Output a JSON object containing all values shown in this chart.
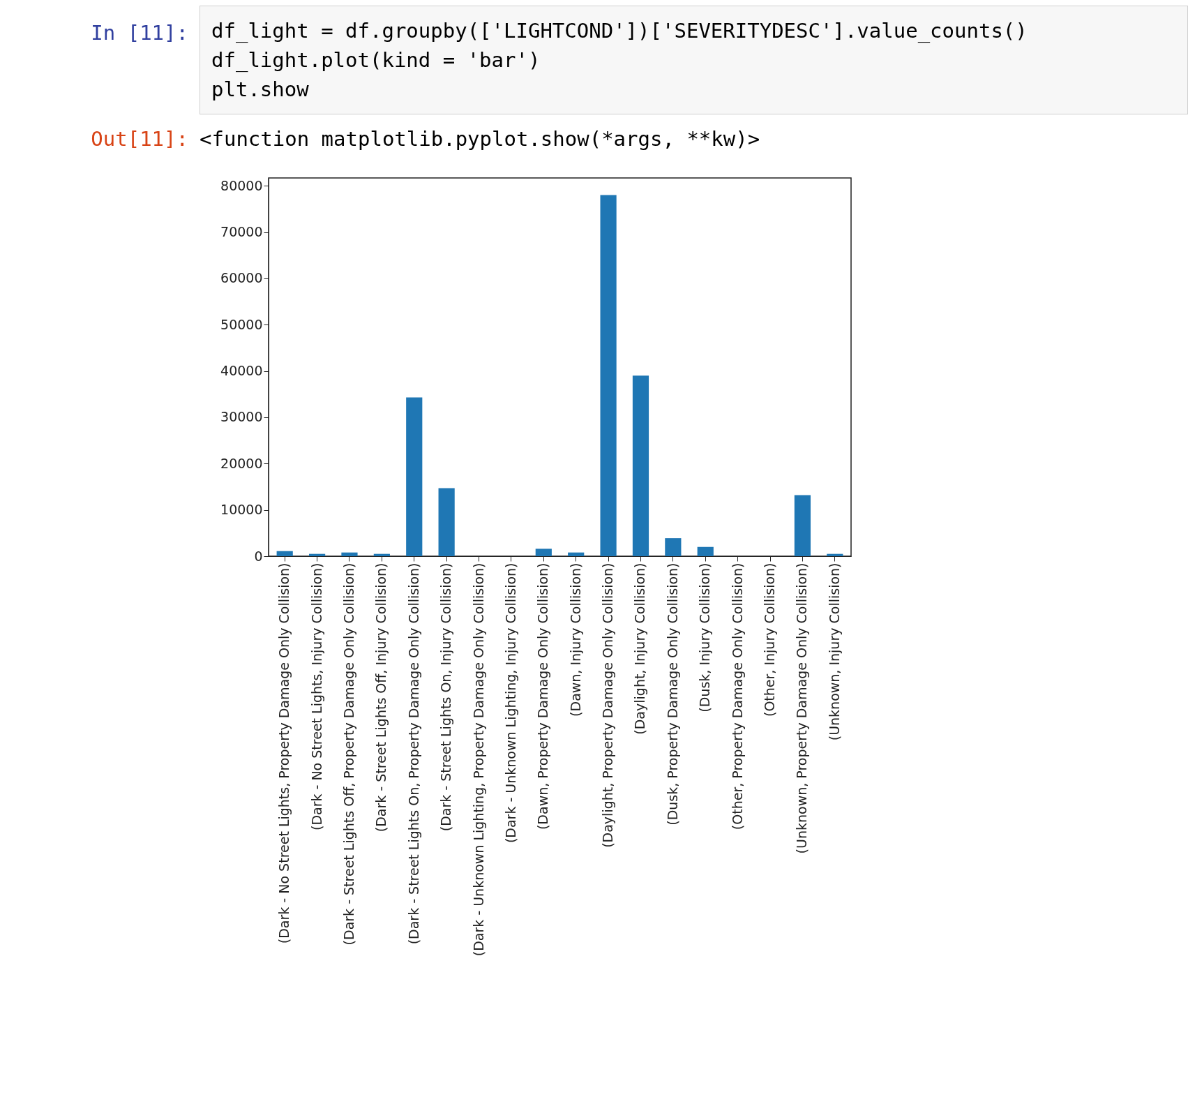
{
  "chart_data": {
    "type": "bar",
    "annotations": [
      "In [11]:",
      "df_light = df.groupby(['LIGHTCOND'])['SEVERITYDESC'].value_counts()",
      "df_light.plot(kind = 'bar')",
      "plt.show",
      "Out[11]:",
      "<function matplotlib.pyplot.show(*args, **kw)>"
    ],
    "categories": [
      "(Dark - No Street Lights, Property Damage Only Collision)",
      "(Dark - No Street Lights, Injury Collision)",
      "(Dark - Street Lights Off, Property Damage Only Collision)",
      "(Dark - Street Lights Off, Injury Collision)",
      "(Dark - Street Lights On, Property Damage Only Collision)",
      "(Dark - Street Lights On, Injury Collision)",
      "(Dark - Unknown Lighting, Property Damage Only Collision)",
      "(Dark - Unknown Lighting, Injury Collision)",
      "(Dawn, Property Damage Only Collision)",
      "(Dawn, Injury Collision)",
      "(Daylight, Property Damage Only Collision)",
      "(Daylight, Injury Collision)",
      "(Dusk, Property Damage Only Collision)",
      "(Dusk, Injury Collision)",
      "(Other, Property Damage Only Collision)",
      "(Other, Injury Collision)",
      "(Unknown, Property Damage Only Collision)",
      "(Unknown, Injury Collision)"
    ],
    "values": [
      1100,
      500,
      800,
      500,
      34300,
      14700,
      0,
      0,
      1600,
      800,
      78000,
      39000,
      3900,
      2000,
      0,
      0,
      13200,
      500
    ],
    "color": "#1f77b4",
    "ylim": [
      0,
      81700
    ],
    "yticks": [
      0,
      10000,
      20000,
      30000,
      40000,
      50000,
      60000,
      70000,
      80000
    ]
  }
}
